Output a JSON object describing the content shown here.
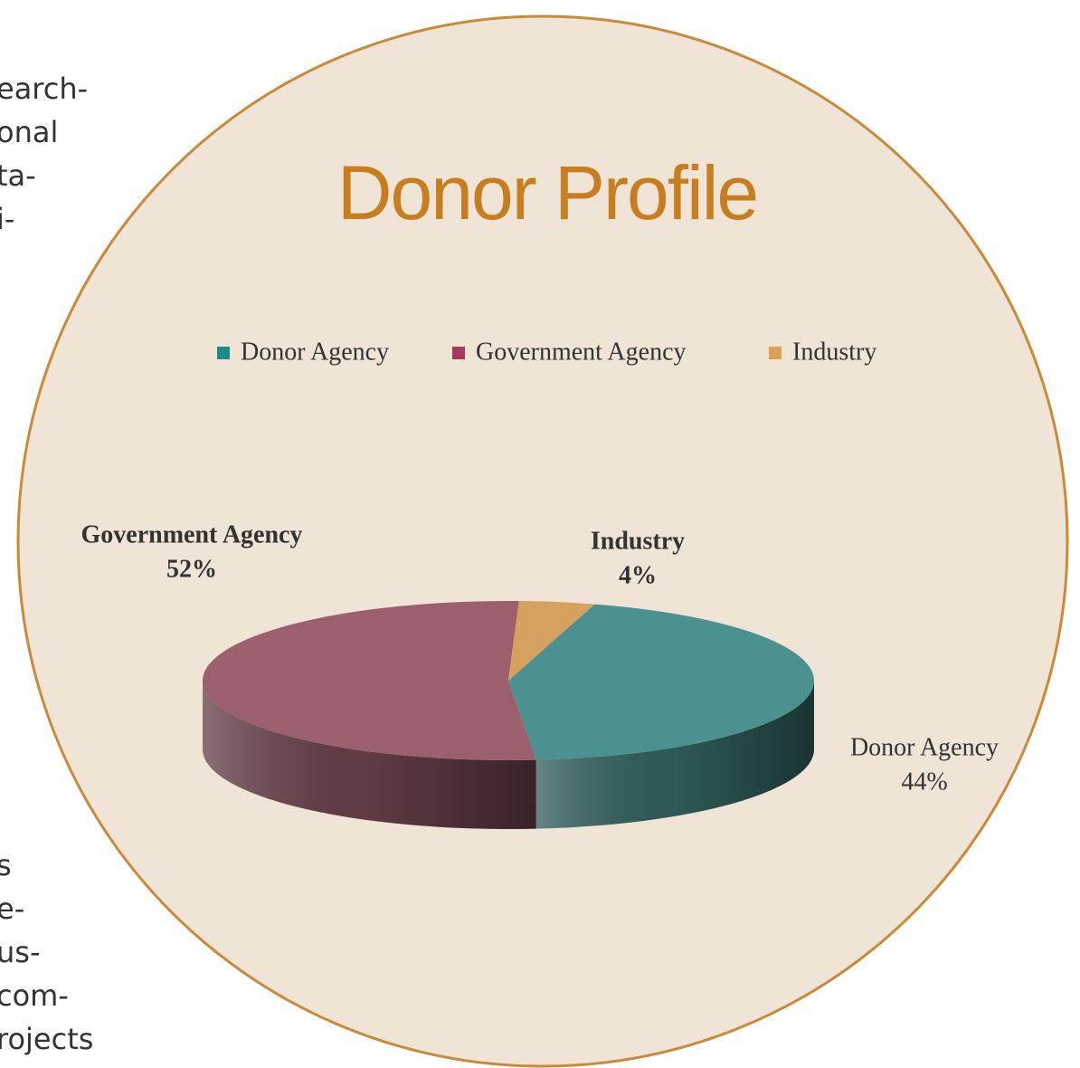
{
  "chart_data": {
    "type": "pie",
    "title": "Donor Profile",
    "categories": [
      "Donor Agency",
      "Government Agency",
      "Industry"
    ],
    "values": [
      44,
      52,
      4
    ],
    "value_labels": [
      "44%",
      "52%",
      "4%"
    ],
    "colors": [
      "#4a918f",
      "#9c5f6e",
      "#d6a05e"
    ],
    "legend_colors": [
      "#1a8a8a",
      "#a5385c",
      "#e0a050"
    ],
    "legend": "top"
  },
  "page_text": {
    "top": [
      "earch-",
      "onal",
      "ta-",
      "i-"
    ],
    "bottom": [
      "s",
      "e-",
      "us-",
      "com-",
      "rojects"
    ]
  }
}
